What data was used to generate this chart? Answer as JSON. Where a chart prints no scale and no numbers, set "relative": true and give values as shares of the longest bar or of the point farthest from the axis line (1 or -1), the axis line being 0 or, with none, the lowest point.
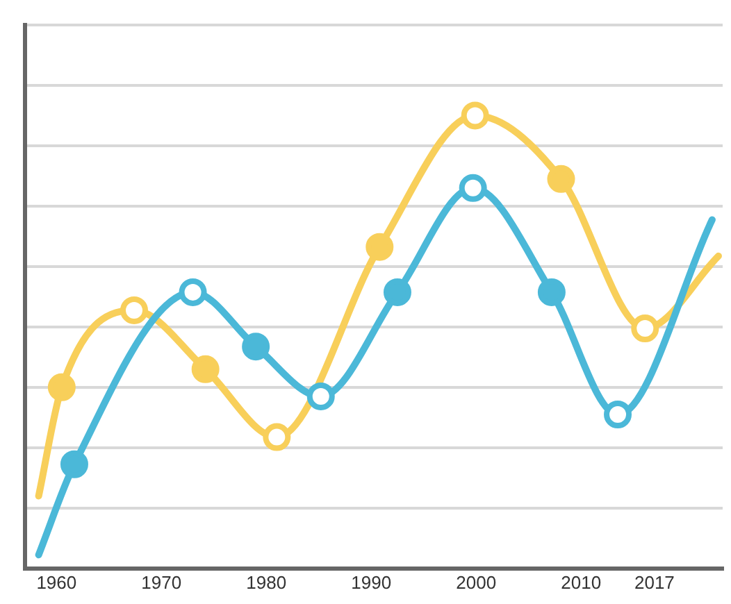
{
  "chart_data": {
    "type": "line",
    "relative": true,
    "marker": "circle",
    "grid": "y",
    "tick_labels": "x",
    "xlim": [
      1957,
      2023.5
    ],
    "xticks": [
      1960,
      1970,
      1980,
      1990,
      2000,
      2010,
      2017
    ],
    "series": [
      {
        "color": "#4bb8d8",
        "x": [
          1958.3,
          1961.7,
          1973,
          1979,
          1985.2,
          1992.5,
          1999.7,
          2007.2,
          2013.5,
          2022.5
        ],
        "values": [
          0.03,
          0.23,
          0.61,
          0.49,
          0.38,
          0.61,
          0.84,
          0.61,
          0.34,
          0.77
        ]
      },
      {
        "color": "#f8cf5a",
        "x": [
          1958.3,
          1960.5,
          1967.4,
          1974.2,
          1981,
          1990.8,
          1999.9,
          2008.1,
          2016.1,
          2023.1
        ],
        "values": [
          0.16,
          0.4,
          0.57,
          0.44,
          0.29,
          0.71,
          1,
          0.86,
          0.53,
          0.69
        ]
      }
    ]
  }
}
